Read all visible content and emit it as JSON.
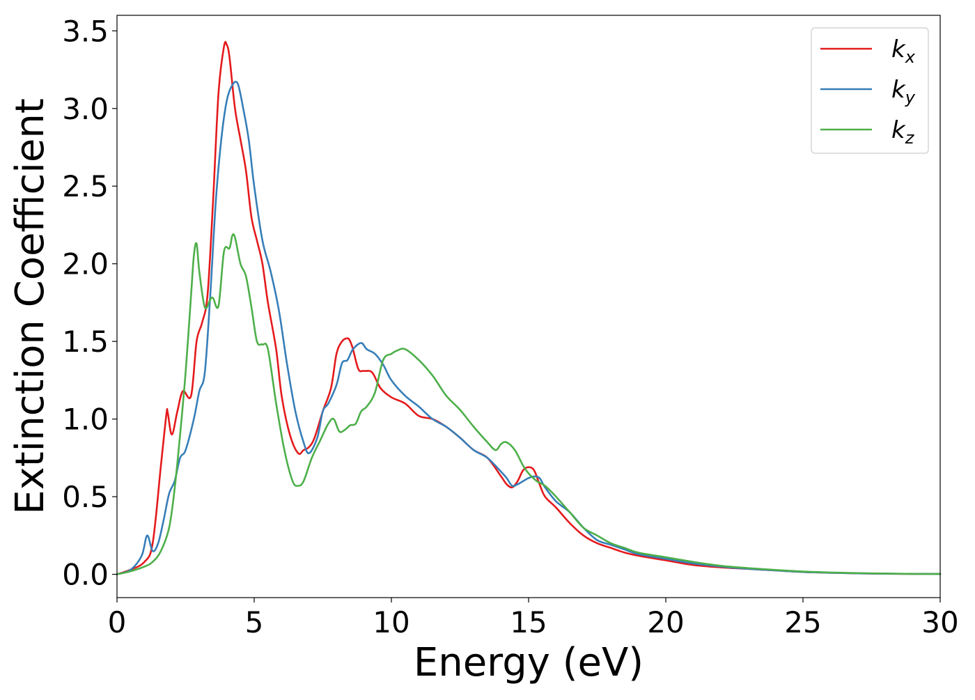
{
  "chart_data": {
    "type": "line",
    "title": "",
    "xlabel": "Energy (eV)",
    "ylabel": "Extinction Coefficient",
    "xlim": [
      0,
      30
    ],
    "ylim": [
      -0.15,
      3.6
    ],
    "xticks": [
      0,
      5,
      10,
      15,
      20,
      25,
      30
    ],
    "xtick_labels": [
      "0",
      "5",
      "10",
      "15",
      "20",
      "25",
      "30"
    ],
    "yticks": [
      0.0,
      0.5,
      1.0,
      1.5,
      2.0,
      2.5,
      3.0,
      3.5
    ],
    "ytick_labels": [
      "0.0",
      "0.5",
      "1.0",
      "1.5",
      "2.0",
      "2.5",
      "3.0",
      "3.5"
    ],
    "grid": false,
    "legend_position": "top-right",
    "series": [
      {
        "name": "k",
        "subscript": "x",
        "color": "#e41a1c",
        "x": [
          0,
          0.5,
          1.0,
          1.3,
          1.6,
          1.8,
          1.85,
          2.0,
          2.2,
          2.4,
          2.7,
          2.9,
          3.1,
          3.3,
          3.5,
          3.7,
          3.9,
          4.0,
          4.1,
          4.3,
          4.5,
          4.7,
          4.9,
          5.1,
          5.3,
          5.5,
          5.8,
          6.0,
          6.3,
          6.6,
          6.8,
          7.0,
          7.2,
          7.5,
          7.8,
          8.0,
          8.2,
          8.4,
          8.5,
          8.6,
          8.8,
          9.0,
          9.3,
          9.6,
          10.0,
          10.5,
          11.0,
          11.5,
          12.0,
          12.5,
          13.0,
          13.5,
          14.0,
          14.2,
          14.4,
          14.6,
          14.8,
          15.0,
          15.2,
          15.4,
          15.6,
          16.0,
          16.5,
          17.0,
          17.5,
          18.0,
          18.5,
          19.0,
          20.0,
          21.0,
          22.0,
          23.0,
          24.0,
          25.0,
          26.0,
          27.0,
          28.0,
          29.0,
          30.0
        ],
        "y": [
          0.0,
          0.03,
          0.08,
          0.2,
          0.7,
          1.03,
          1.04,
          0.9,
          1.05,
          1.18,
          1.15,
          1.5,
          1.62,
          1.8,
          2.4,
          3.1,
          3.4,
          3.41,
          3.33,
          3.0,
          2.8,
          2.6,
          2.3,
          2.15,
          2.0,
          1.75,
          1.45,
          1.15,
          0.9,
          0.78,
          0.8,
          0.82,
          0.88,
          1.05,
          1.2,
          1.42,
          1.5,
          1.52,
          1.5,
          1.45,
          1.32,
          1.31,
          1.3,
          1.2,
          1.14,
          1.1,
          1.02,
          1.0,
          0.95,
          0.88,
          0.8,
          0.75,
          0.63,
          0.58,
          0.56,
          0.6,
          0.67,
          0.69,
          0.67,
          0.58,
          0.5,
          0.43,
          0.33,
          0.25,
          0.2,
          0.17,
          0.14,
          0.12,
          0.09,
          0.06,
          0.045,
          0.035,
          0.025,
          0.015,
          0.01,
          0.006,
          0.004,
          0.003,
          0.002
        ]
      },
      {
        "name": "k",
        "subscript": "y",
        "color": "#377eb8",
        "x": [
          0,
          0.5,
          0.9,
          1.1,
          1.3,
          1.5,
          1.7,
          1.9,
          2.1,
          2.3,
          2.5,
          2.8,
          3.0,
          3.2,
          3.4,
          3.6,
          3.8,
          4.0,
          4.2,
          4.4,
          4.6,
          4.8,
          5.0,
          5.3,
          5.6,
          5.9,
          6.2,
          6.5,
          6.8,
          7.0,
          7.3,
          7.5,
          7.7,
          8.0,
          8.2,
          8.4,
          8.6,
          8.9,
          9.1,
          9.4,
          9.7,
          10.0,
          10.5,
          11.0,
          11.5,
          12.0,
          12.5,
          13.0,
          13.5,
          14.0,
          14.2,
          14.4,
          14.6,
          14.8,
          15.0,
          15.2,
          15.4,
          15.6,
          16.0,
          16.5,
          17.0,
          17.5,
          18.0,
          18.5,
          19.0,
          20.0,
          21.0,
          22.0,
          23.0,
          24.0,
          25.0,
          26.0,
          27.0,
          28.0,
          29.0,
          30.0
        ],
        "y": [
          0.0,
          0.03,
          0.12,
          0.25,
          0.15,
          0.2,
          0.35,
          0.52,
          0.6,
          0.75,
          0.8,
          1.0,
          1.18,
          1.3,
          1.8,
          2.4,
          2.8,
          3.05,
          3.15,
          3.16,
          3.0,
          2.8,
          2.5,
          2.15,
          1.95,
          1.7,
          1.35,
          1.05,
          0.85,
          0.78,
          0.88,
          1.05,
          1.1,
          1.22,
          1.36,
          1.38,
          1.45,
          1.49,
          1.45,
          1.42,
          1.35,
          1.25,
          1.15,
          1.08,
          1.0,
          0.95,
          0.88,
          0.8,
          0.75,
          0.66,
          0.62,
          0.57,
          0.58,
          0.6,
          0.62,
          0.63,
          0.62,
          0.56,
          0.47,
          0.4,
          0.3,
          0.22,
          0.19,
          0.16,
          0.13,
          0.1,
          0.07,
          0.05,
          0.035,
          0.025,
          0.015,
          0.01,
          0.006,
          0.004,
          0.003,
          0.002
        ]
      },
      {
        "name": "k",
        "subscript": "z",
        "color": "#4daf4a",
        "x": [
          0,
          0.5,
          1.0,
          1.3,
          1.6,
          1.9,
          2.1,
          2.3,
          2.5,
          2.7,
          2.8,
          2.9,
          3.0,
          3.2,
          3.4,
          3.5,
          3.7,
          3.9,
          4.1,
          4.2,
          4.3,
          4.5,
          4.7,
          4.9,
          5.1,
          5.3,
          5.5,
          5.8,
          6.1,
          6.4,
          6.6,
          6.8,
          7.1,
          7.4,
          7.7,
          7.9,
          8.1,
          8.3,
          8.5,
          8.7,
          8.9,
          9.1,
          9.4,
          9.7,
          10.0,
          10.2,
          10.5,
          11.0,
          11.5,
          12.0,
          12.5,
          13.0,
          13.5,
          13.8,
          14.0,
          14.2,
          14.5,
          14.8,
          15.0,
          15.3,
          15.6,
          16.0,
          16.5,
          17.0,
          17.5,
          18.0,
          18.5,
          19.0,
          20.0,
          21.0,
          22.0,
          23.0,
          24.0,
          25.0,
          26.0,
          27.0,
          28.0,
          29.0,
          30.0
        ],
        "y": [
          0.0,
          0.02,
          0.05,
          0.08,
          0.15,
          0.3,
          0.55,
          0.9,
          1.3,
          1.8,
          2.05,
          2.13,
          1.95,
          1.72,
          1.77,
          1.78,
          1.73,
          2.08,
          2.1,
          2.18,
          2.17,
          2.0,
          1.92,
          1.72,
          1.5,
          1.48,
          1.45,
          1.1,
          0.8,
          0.6,
          0.57,
          0.6,
          0.75,
          0.86,
          0.97,
          1.0,
          0.92,
          0.93,
          0.96,
          0.97,
          1.05,
          1.08,
          1.17,
          1.38,
          1.42,
          1.44,
          1.45,
          1.38,
          1.28,
          1.15,
          1.06,
          0.95,
          0.85,
          0.8,
          0.84,
          0.85,
          0.8,
          0.7,
          0.65,
          0.6,
          0.57,
          0.5,
          0.4,
          0.3,
          0.25,
          0.2,
          0.17,
          0.14,
          0.11,
          0.08,
          0.055,
          0.04,
          0.028,
          0.018,
          0.012,
          0.008,
          0.005,
          0.003,
          0.002
        ]
      }
    ]
  }
}
